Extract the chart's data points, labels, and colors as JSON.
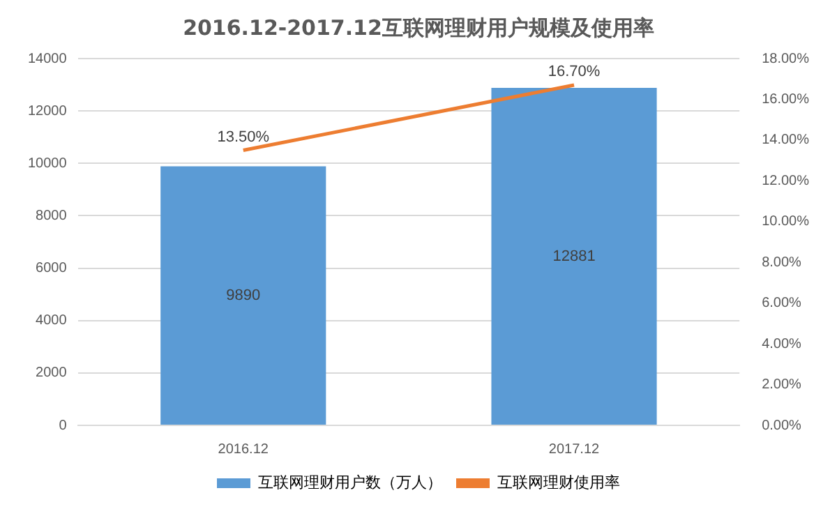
{
  "chart_data": {
    "type": "bar",
    "title": "2016.12-2017.12互联网理财用户规模及使用率",
    "categories": [
      "2016.12",
      "2017.12"
    ],
    "series": [
      {
        "name": "互联网理财用户数（万人）",
        "color": "#5b9bd5",
        "values": [
          9890,
          12881
        ],
        "value_labels": [
          "9890",
          "12881"
        ]
      },
      {
        "name": "互联网理财使用率",
        "type": "line",
        "axis": "y2",
        "color": "#ed7d31",
        "values": [
          13.5,
          16.7
        ],
        "value_labels": [
          "13.50%",
          "16.70%"
        ]
      }
    ],
    "ylim": [
      0,
      14000
    ],
    "yticks": [
      0,
      2000,
      4000,
      6000,
      8000,
      10000,
      12000,
      14000
    ],
    "y2lim": [
      0,
      18
    ],
    "y2ticks": [
      {
        "value": 0,
        "label": "0.00%"
      },
      {
        "value": 2,
        "label": "2.00%"
      },
      {
        "value": 4,
        "label": "4.00%"
      },
      {
        "value": 6,
        "label": "6.00%"
      },
      {
        "value": 8,
        "label": "8.00%"
      },
      {
        "value": 10,
        "label": "10.00%"
      },
      {
        "value": 12,
        "label": "12.00%"
      },
      {
        "value": 14,
        "label": "14.00%"
      },
      {
        "value": 16,
        "label": "16.00%"
      },
      {
        "value": 18,
        "label": "18.00%"
      }
    ],
    "grid": "y",
    "legend": "bottom",
    "marker": "none",
    "line_style": "solid"
  }
}
